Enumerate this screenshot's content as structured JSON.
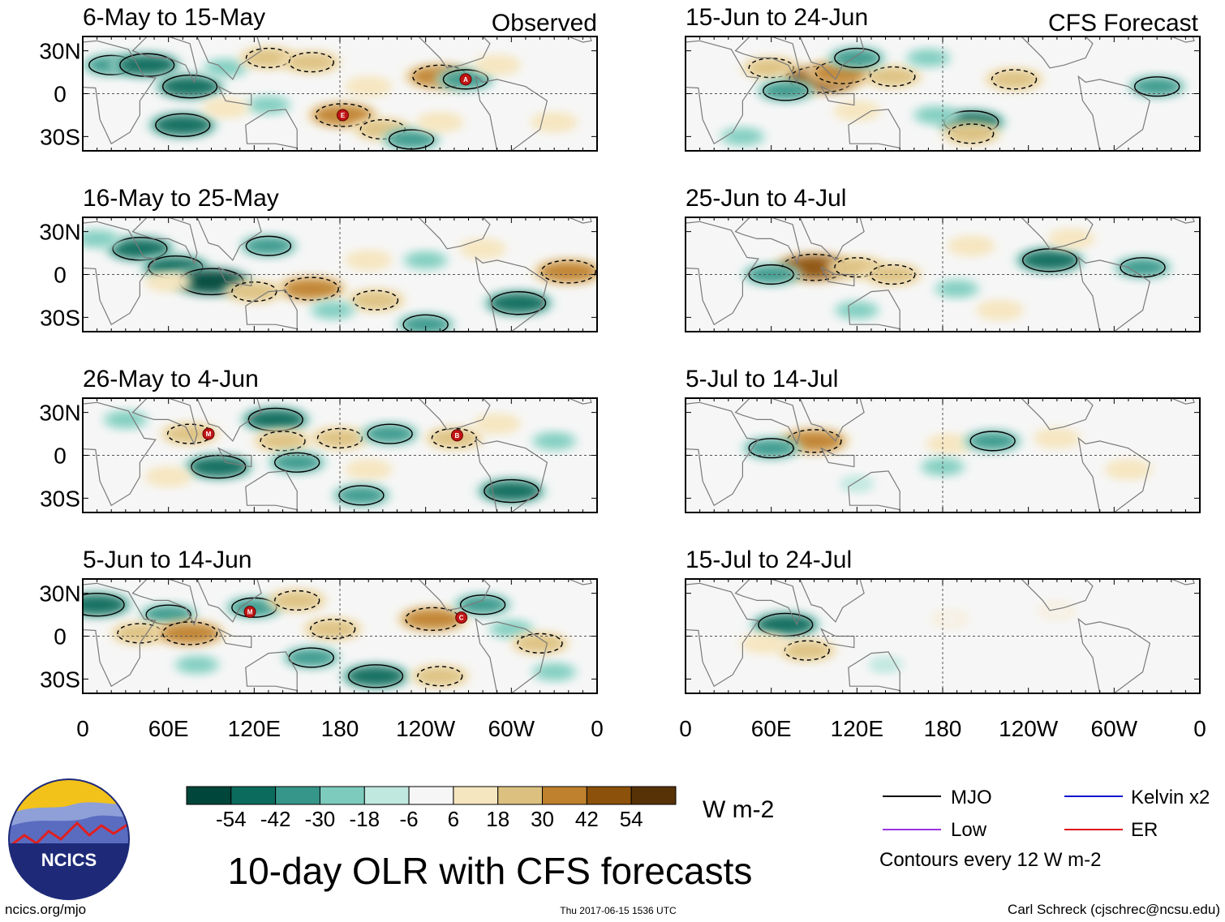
{
  "figure": {
    "title": "10-day OLR with CFS forecasts",
    "observed_label": "Observed",
    "forecast_label": "CFS Forecast",
    "logo_text": "NCICS",
    "footer_left": "ncics.org/mjo",
    "footer_center": "Thu 2017-06-15 1536 UTC",
    "footer_right": "Carl Schreck (cjschrec@ncsu.edu)"
  },
  "colorbar": {
    "unit": "W m-2",
    "ticks": [
      "-54",
      "-42",
      "-30",
      "-18",
      "-6",
      "6",
      "18",
      "30",
      "42",
      "54"
    ],
    "colors": [
      "#01463a",
      "#0b6b5c",
      "#37968a",
      "#7ccbbd",
      "#c0e8df",
      "#f6f6f6",
      "#f6e6bf",
      "#dcc07f",
      "#bf812d",
      "#8c510a",
      "#573206"
    ]
  },
  "legend": {
    "items": [
      {
        "label": "MJO",
        "color": "#000000"
      },
      {
        "label": "Kelvin x2",
        "color": "#1010d0"
      },
      {
        "label": "Low",
        "color": "#9a34e0"
      },
      {
        "label": "ER",
        "color": "#e01010"
      }
    ],
    "note": "Contours every 12 W m-2"
  },
  "chart_data": {
    "type": "heatmap",
    "description_variable": "10-day outgoing longwave radiation anomaly",
    "xlabel": "",
    "ylabel": "",
    "x_ticks": [
      "0",
      "60E",
      "120E",
      "180",
      "120W",
      "60W",
      "0"
    ],
    "y_ticks": [
      "30N",
      "0",
      "30S"
    ],
    "xlim_deg_east": [
      0,
      360
    ],
    "ylim_deg": [
      -40,
      40
    ],
    "panels": [
      {
        "column": "observed",
        "period": "6-May to 15-May",
        "storms": [
          {
            "letter": "A",
            "lon": 268,
            "lat": 10
          },
          {
            "letter": "E",
            "lon": 182,
            "lat": -15
          }
        ],
        "anomalies": [
          {
            "lon": 20,
            "lat": 20,
            "value": -30
          },
          {
            "lon": 45,
            "lat": 20,
            "value": -42
          },
          {
            "lon": 75,
            "lat": 5,
            "value": -42
          },
          {
            "lon": 100,
            "lat": 18,
            "value": -18
          },
          {
            "lon": 130,
            "lat": 25,
            "value": 30
          },
          {
            "lon": 160,
            "lat": 22,
            "value": 30
          },
          {
            "lon": 200,
            "lat": 5,
            "value": 18
          },
          {
            "lon": 250,
            "lat": 12,
            "value": 42
          },
          {
            "lon": 268,
            "lat": 10,
            "value": -30
          },
          {
            "lon": 290,
            "lat": 20,
            "value": 18
          },
          {
            "lon": 70,
            "lat": -22,
            "value": -42
          },
          {
            "lon": 182,
            "lat": -15,
            "value": 42
          },
          {
            "lon": 210,
            "lat": -25,
            "value": 30
          },
          {
            "lon": 230,
            "lat": -32,
            "value": -30
          },
          {
            "lon": 130,
            "lat": -8,
            "value": -18
          },
          {
            "lon": 100,
            "lat": -10,
            "value": 18
          },
          {
            "lon": 330,
            "lat": -20,
            "value": 18
          },
          {
            "lon": 250,
            "lat": -20,
            "value": 18
          }
        ]
      },
      {
        "column": "observed",
        "period": "16-May to 25-May",
        "storms": [],
        "anomalies": [
          {
            "lon": 40,
            "lat": 18,
            "value": -42
          },
          {
            "lon": 65,
            "lat": 5,
            "value": -42
          },
          {
            "lon": 90,
            "lat": -5,
            "value": -54
          },
          {
            "lon": 60,
            "lat": -5,
            "value": 18
          },
          {
            "lon": 130,
            "lat": 20,
            "value": -30
          },
          {
            "lon": 160,
            "lat": -10,
            "value": 42
          },
          {
            "lon": 120,
            "lat": -12,
            "value": 30
          },
          {
            "lon": 200,
            "lat": 10,
            "value": 18
          },
          {
            "lon": 240,
            "lat": 10,
            "value": -18
          },
          {
            "lon": 280,
            "lat": 18,
            "value": 18
          },
          {
            "lon": 340,
            "lat": 2,
            "value": 42
          },
          {
            "lon": 305,
            "lat": -20,
            "value": -42
          },
          {
            "lon": 205,
            "lat": -18,
            "value": 30
          },
          {
            "lon": 175,
            "lat": -25,
            "value": -18
          },
          {
            "lon": 240,
            "lat": -35,
            "value": -30
          },
          {
            "lon": 10,
            "lat": 25,
            "value": -18
          }
        ]
      },
      {
        "column": "observed",
        "period": "26-May to 4-Jun",
        "storms": [
          {
            "letter": "M",
            "lon": 88,
            "lat": 15
          },
          {
            "letter": "B",
            "lon": 262,
            "lat": 14
          }
        ],
        "anomalies": [
          {
            "lon": 30,
            "lat": 25,
            "value": -18
          },
          {
            "lon": 75,
            "lat": 15,
            "value": 30
          },
          {
            "lon": 135,
            "lat": 25,
            "value": -42
          },
          {
            "lon": 140,
            "lat": 10,
            "value": 30
          },
          {
            "lon": 180,
            "lat": 12,
            "value": 30
          },
          {
            "lon": 215,
            "lat": 15,
            "value": -30
          },
          {
            "lon": 260,
            "lat": 12,
            "value": 30
          },
          {
            "lon": 290,
            "lat": 22,
            "value": 18
          },
          {
            "lon": 95,
            "lat": -8,
            "value": -42
          },
          {
            "lon": 150,
            "lat": -5,
            "value": -30
          },
          {
            "lon": 200,
            "lat": -10,
            "value": 18
          },
          {
            "lon": 300,
            "lat": -25,
            "value": -42
          },
          {
            "lon": 195,
            "lat": -28,
            "value": -30
          },
          {
            "lon": 60,
            "lat": -15,
            "value": 18
          },
          {
            "lon": 330,
            "lat": 10,
            "value": -18
          }
        ]
      },
      {
        "column": "observed",
        "period": "5-Jun to 14-Jun",
        "storms": [
          {
            "letter": "M",
            "lon": 117,
            "lat": 17
          },
          {
            "letter": "C",
            "lon": 265,
            "lat": 13
          }
        ],
        "anomalies": [
          {
            "lon": 10,
            "lat": 22,
            "value": -42
          },
          {
            "lon": 60,
            "lat": 15,
            "value": -30
          },
          {
            "lon": 40,
            "lat": 2,
            "value": 30
          },
          {
            "lon": 75,
            "lat": 2,
            "value": 42
          },
          {
            "lon": 120,
            "lat": 20,
            "value": -30
          },
          {
            "lon": 150,
            "lat": 25,
            "value": 30
          },
          {
            "lon": 175,
            "lat": 5,
            "value": 30
          },
          {
            "lon": 245,
            "lat": 12,
            "value": 42
          },
          {
            "lon": 280,
            "lat": 22,
            "value": -30
          },
          {
            "lon": 300,
            "lat": 5,
            "value": -18
          },
          {
            "lon": 320,
            "lat": -5,
            "value": 30
          },
          {
            "lon": 80,
            "lat": -20,
            "value": -18
          },
          {
            "lon": 160,
            "lat": -15,
            "value": -30
          },
          {
            "lon": 205,
            "lat": -28,
            "value": -42
          },
          {
            "lon": 250,
            "lat": -28,
            "value": 30
          },
          {
            "lon": 330,
            "lat": -25,
            "value": -18
          }
        ]
      },
      {
        "column": "forecast",
        "period": "15-Jun to 24-Jun",
        "storms": [],
        "anomalies": [
          {
            "lon": 60,
            "lat": 18,
            "value": 30
          },
          {
            "lon": 95,
            "lat": 10,
            "value": 54
          },
          {
            "lon": 110,
            "lat": 15,
            "value": 42
          },
          {
            "lon": 145,
            "lat": 12,
            "value": 30
          },
          {
            "lon": 120,
            "lat": 25,
            "value": -30
          },
          {
            "lon": 70,
            "lat": 2,
            "value": -30
          },
          {
            "lon": 170,
            "lat": 25,
            "value": -18
          },
          {
            "lon": 230,
            "lat": 10,
            "value": 30
          },
          {
            "lon": 330,
            "lat": 5,
            "value": -30
          },
          {
            "lon": 200,
            "lat": -20,
            "value": -42
          },
          {
            "lon": 175,
            "lat": -15,
            "value": -18
          },
          {
            "lon": 200,
            "lat": -28,
            "value": 30
          },
          {
            "lon": 120,
            "lat": -12,
            "value": 18
          },
          {
            "lon": 40,
            "lat": -30,
            "value": -18
          }
        ]
      },
      {
        "column": "forecast",
        "period": "25-Jun to 4-Jul",
        "storms": [],
        "anomalies": [
          {
            "lon": 90,
            "lat": 5,
            "value": 54
          },
          {
            "lon": 120,
            "lat": 5,
            "value": 30
          },
          {
            "lon": 145,
            "lat": 0,
            "value": 30
          },
          {
            "lon": 60,
            "lat": 0,
            "value": -30
          },
          {
            "lon": 200,
            "lat": 20,
            "value": 18
          },
          {
            "lon": 255,
            "lat": 10,
            "value": -42
          },
          {
            "lon": 320,
            "lat": 5,
            "value": -30
          },
          {
            "lon": 190,
            "lat": -10,
            "value": -18
          },
          {
            "lon": 120,
            "lat": -25,
            "value": -18
          },
          {
            "lon": 220,
            "lat": -25,
            "value": 18
          },
          {
            "lon": 270,
            "lat": 25,
            "value": 18
          }
        ]
      },
      {
        "column": "forecast",
        "period": "5-Jul to 14-Jul",
        "storms": [],
        "anomalies": [
          {
            "lon": 90,
            "lat": 10,
            "value": 42
          },
          {
            "lon": 60,
            "lat": 5,
            "value": -30
          },
          {
            "lon": 185,
            "lat": 8,
            "value": 18
          },
          {
            "lon": 215,
            "lat": 10,
            "value": -30
          },
          {
            "lon": 260,
            "lat": 12,
            "value": 18
          },
          {
            "lon": 180,
            "lat": -8,
            "value": -18
          },
          {
            "lon": 310,
            "lat": -10,
            "value": 18
          },
          {
            "lon": 120,
            "lat": -20,
            "value": -6
          }
        ]
      },
      {
        "column": "forecast",
        "period": "15-Jul to 24-Jul",
        "storms": [],
        "anomalies": [
          {
            "lon": 70,
            "lat": 8,
            "value": -42
          },
          {
            "lon": 85,
            "lat": -10,
            "value": 30
          },
          {
            "lon": 55,
            "lat": -5,
            "value": 18
          },
          {
            "lon": 185,
            "lat": 12,
            "value": 6
          },
          {
            "lon": 260,
            "lat": 18,
            "value": 6
          },
          {
            "lon": 140,
            "lat": -20,
            "value": -6
          }
        ]
      }
    ]
  }
}
